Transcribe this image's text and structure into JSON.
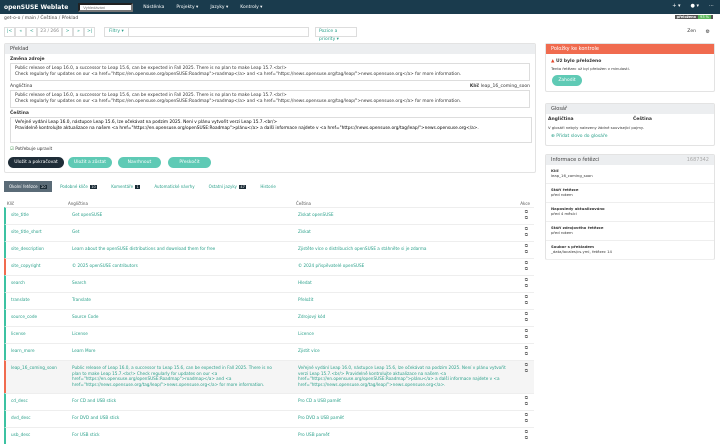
{
  "nav": {
    "logo": "openSUSE Weblate",
    "search_placeholder": "Vyhledávání",
    "menu": [
      "Nástěnka",
      "Projekty ▾",
      "Jazyky ▾",
      "Kontroly ▾"
    ],
    "right": [
      "+ ▾",
      "● ▾",
      "⋯"
    ]
  },
  "breadcrumb": "get-o-o / main / Čeština / Překlad",
  "status_badge": {
    "label": "přeloženo",
    "value": "93 %"
  },
  "toolbar": {
    "first": "|<",
    "prev_fast": "«",
    "prev": "<",
    "position": "23 / 266",
    "next": ">",
    "next_fast": "»",
    "last": ">|",
    "filter": "Filtry ▾",
    "priority": "Pozice a priority ▾",
    "zen": "Zen"
  },
  "translate": {
    "title": "Překlad",
    "source_change_label": "Změna zdroje",
    "source_change": [
      "Public release of Leap 16.0, a successor to Leap 15.6, can be expected in Fall 2025. There is no plan to make Leap 15.7.<br/>",
      "Check regularly for updates on our <a href=\"https://en.opensuse.org/openSUSE:Roadmap\">roadmap</a> and <a href=\"https://news.opensuse.org/tag/leap/\">news.opensuse.org</a> for more information."
    ],
    "english_label": "Angličtina",
    "key_label": "Klíč",
    "key": "leap_16_coming_soon",
    "english": [
      "Public release of Leap 16.0, a successor to Leap 15.6, can be expected in Fall 2025. There is no plan to make Leap 15.7.<br/>",
      "Check regularly for updates on our <a href=\"https://en.opensuse.org/openSUSE:Roadmap\">roadmap</a> and <a href=\"https://news.opensuse.org/tag/leap/\">news.opensuse.org</a> for more information."
    ],
    "czech_label": "Čeština",
    "czech": [
      "Veřejné vydání Leap 16.0, nástupce Leap 15.6, lze očekávat na podzim 2025. Není v plánu vytvořit verzi Leap 15.7.<br/>",
      "Pravidelně kontrolujte aktualizace na našem <a href=\"https://en.opensuse.org/openSUSE:Roadmap\">plánu</a> a další informace najdete v <a href=\"https://news.opensuse.org/tag/leap/\">news.opensuse.org</a>."
    ],
    "needs_editing": "Potřebuje upravit",
    "buttons": {
      "save_continue": "Uložit a pokračovat",
      "save_stay": "Uložit a zůstat",
      "suggest": "Navrhnout",
      "skip": "Přeskočit"
    }
  },
  "tabs": [
    {
      "label": "Okolní řetězce",
      "count": "20"
    },
    {
      "label": "Podobné klíče",
      "count": "10"
    },
    {
      "label": "Komentáře",
      "count": "1"
    },
    {
      "label": "Automatické návrhy"
    },
    {
      "label": "Ostatní jazyky",
      "count": "47"
    },
    {
      "label": "Historie"
    }
  ],
  "table": {
    "headers": [
      "Klíč",
      "Angličtina",
      "Čeština",
      "Akce"
    ],
    "rows": [
      {
        "key": "site_title",
        "en": "Get openSUSE",
        "cs": "Získat openSUSE",
        "state": "ok"
      },
      {
        "key": "site_title_short",
        "en": "Get",
        "cs": "Získat",
        "state": "ok"
      },
      {
        "key": "site_description",
        "en": "Learn about the openSUSE distributions and download them for free",
        "cs": "Zjistěte více o distribucích openSUSE a stáhněte si je zdarma",
        "state": "ok"
      },
      {
        "key": "site_copyright",
        "en": "© 2025 openSUSE contributors",
        "cs": "© 2024 přispěvatelé openSUSE",
        "state": "bad"
      },
      {
        "key": "search",
        "en": "Search",
        "cs": "Hledat",
        "state": "ok"
      },
      {
        "key": "translate",
        "en": "Translate",
        "cs": "Přeložit",
        "state": "ok"
      },
      {
        "key": "source_code",
        "en": "Source Code",
        "cs": "Zdrojový kód",
        "state": "ok"
      },
      {
        "key": "license",
        "en": "License",
        "cs": "Licence",
        "state": "ok"
      },
      {
        "key": "learn_more",
        "en": "Learn More",
        "cs": "Zjistit více",
        "state": "ok"
      },
      {
        "key": "leap_16_coming_soon",
        "en": "Public release of Leap 16.0, a successor to Leap 15.6, can be expected in Fall 2025. There is no plan to make Leap 15.7.<br/> Check regularly for updates on our <a href=\"https://en.opensuse.org/openSUSE:Roadmap\">roadmap</a> and <a href=\"https://news.opensuse.org/tag/leap/\">news.opensuse.org</a> for more information.",
        "cs": "Veřejné vydání Leap 16.0, nástupce Leap 15.6, lze očekávat na podzim 2025. Není v plánu vytvořit verzi Leap 15.7.<br/> Pravidelně kontrolujte aktualizace na našem <a href=\"https://en.opensuse.org/openSUSE:Roadmap\">plánu</a> a další informace najdete v <a href=\"https://news.opensuse.org/tag/leap/\">news.opensuse.org</a>.",
        "state": "bad"
      },
      {
        "key": "cd_desc",
        "en": "For CD and USB stick",
        "cs": "Pro CD a USB paměť",
        "state": "ok"
      },
      {
        "key": "dvd_desc",
        "en": "For DVD and USB stick",
        "cs": "Pro DVD a USB paměť",
        "state": "ok"
      },
      {
        "key": "usb_desc",
        "en": "For USB stick",
        "cs": "Pro USB paměť",
        "state": "ok"
      }
    ]
  },
  "checks": {
    "title": "Položky ke kontrole",
    "item": "Už bylo přeloženo",
    "item_desc": "Tento řetězec už byl přeložen v minulosti.",
    "dismiss": "Zahodit"
  },
  "glossary": {
    "title": "Glosář",
    "col_en": "Angličtina",
    "col_cs": "Čeština",
    "empty": "V glosáři nebyly nalezeny žádné související pojmy.",
    "add": "Přidat slovo do glosáře"
  },
  "info": {
    "title": "Informace o řetězci",
    "id": "1687342",
    "fields": [
      {
        "label": "Klíč",
        "value": "leap_16_coming_soon"
      },
      {
        "label": "Stáří řetězce",
        "value": "před rokem"
      },
      {
        "label": "Naposledy aktualizováno",
        "value": "před 4 měsíci"
      },
      {
        "label": "Stáří zdrojového řetězce",
        "value": "před rokem"
      },
      {
        "label": "Soubor s překladem",
        "value": "_data/locales/cs.yml, řetězec 14"
      }
    ]
  },
  "colors": {
    "nav": "#1a3b4d",
    "accent": "#2aa08a",
    "danger": "#f06b4f",
    "button_light": "#5fcab5"
  }
}
